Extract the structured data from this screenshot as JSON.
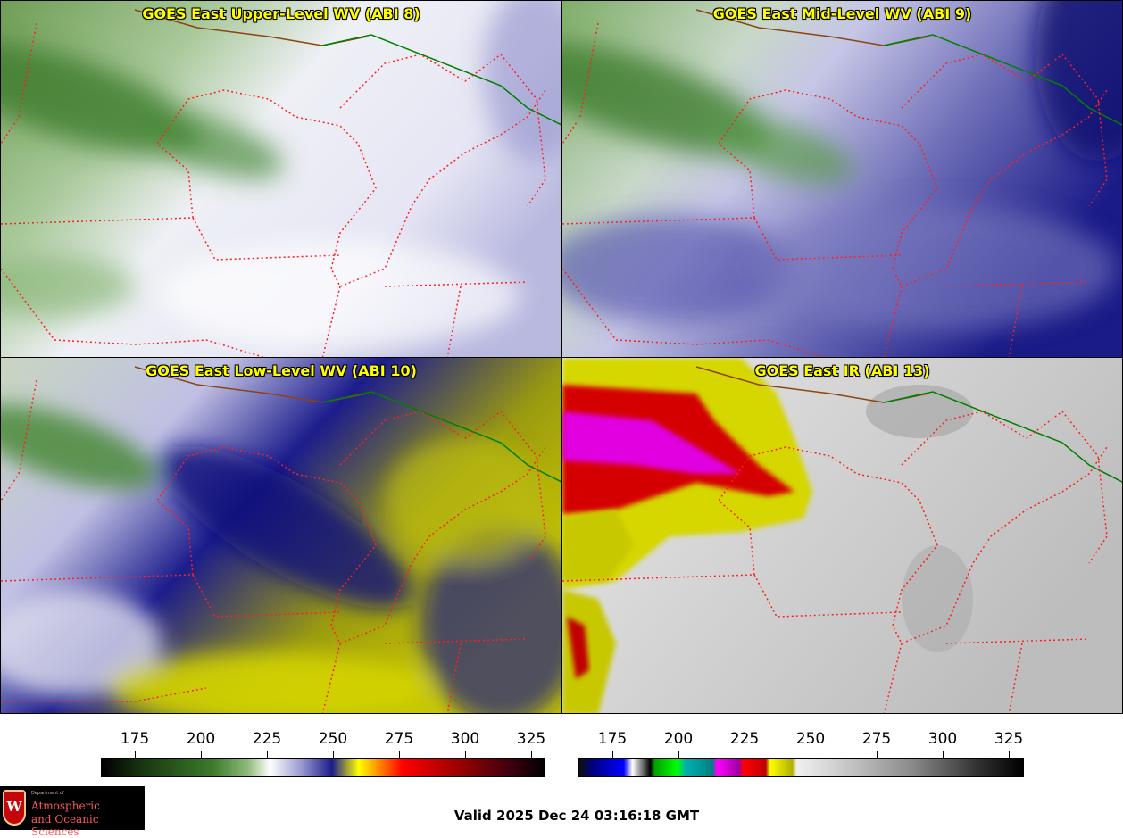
{
  "panels": [
    {
      "title": "GOES East Upper-Level WV (ABI 8)",
      "theme": "upper"
    },
    {
      "title": "GOES East Mid-Level WV (ABI 9)",
      "theme": "mid"
    },
    {
      "title": "GOES East Low-Level WV (ABI 10)",
      "theme": "low"
    },
    {
      "title": "GOES East IR (ABI 13)",
      "theme": "ir"
    }
  ],
  "colorbars": [
    {
      "name": "water-vapor",
      "ticks": [
        "175",
        "200",
        "225",
        "250",
        "275",
        "300",
        "325"
      ]
    },
    {
      "name": "infrared",
      "ticks": [
        "175",
        "200",
        "225",
        "250",
        "275",
        "300",
        "325"
      ]
    }
  ],
  "valid_time": "Valid 2025 Dec 24 03:16:18 GMT",
  "logo": {
    "line1": "Department of",
    "line2": "Atmospheric",
    "line3": "and Oceanic Sciences",
    "crest_letter": "W"
  },
  "colors": {
    "title": "#ffff00",
    "state_borders": "#ff2020",
    "national_border": "#008000",
    "coast": "#8b4513"
  }
}
